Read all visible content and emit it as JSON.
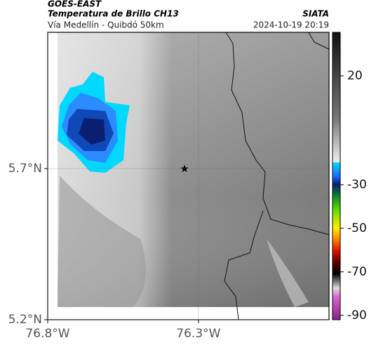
{
  "header": {
    "title": "GOES-EAST",
    "subtitle": "Temperatura de Brillo CH13",
    "source": "SIATA",
    "route": "Vía Medellín - Quibdó 50km",
    "datetime": "2024-10-19 20:19"
  },
  "map": {
    "xlim": [
      -76.8,
      -75.867
    ],
    "ylim": [
      5.2,
      6.151
    ],
    "xticks": [
      {
        "value": -76.8,
        "label": "76.8°W"
      },
      {
        "value": -76.3,
        "label": "76.3°W"
      }
    ],
    "yticks": [
      {
        "value": 5.2,
        "label": "5.2°N"
      },
      {
        "value": 5.7,
        "label": "5.7°N"
      }
    ]
  },
  "colorbar": {
    "lim": [
      -92,
      40
    ],
    "ticks": [
      20,
      -30,
      -50,
      -70,
      -90
    ]
  }
}
